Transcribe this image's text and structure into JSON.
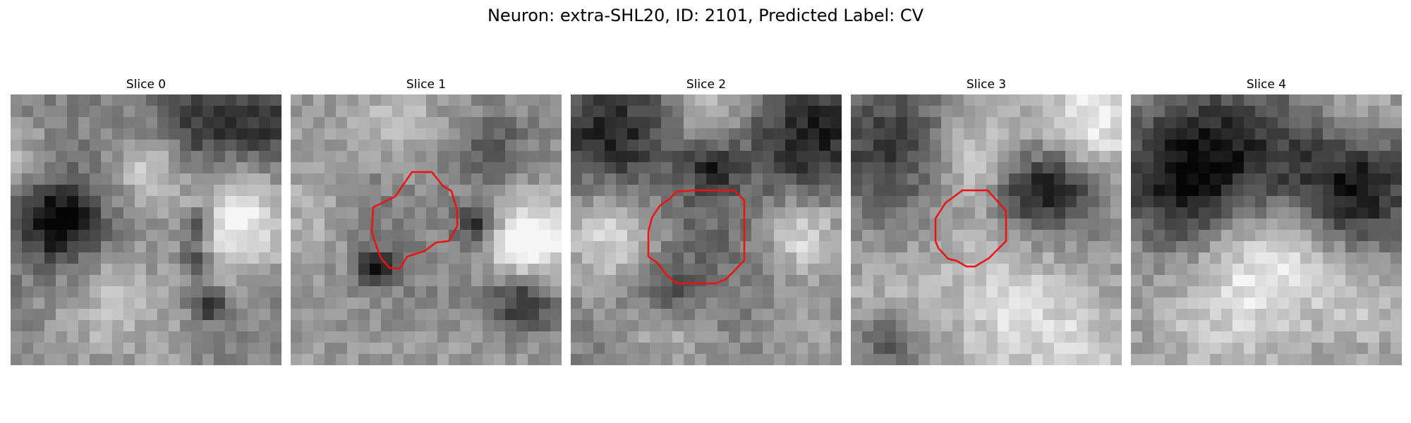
{
  "figure": {
    "title": "Neuron: extra-SHL20, ID: 2101, Predicted Label: CV",
    "outline_color": "#ee1111"
  },
  "panels": [
    {
      "title": "Slice 0",
      "has_outline": false
    },
    {
      "title": "Slice 1",
      "has_outline": true
    },
    {
      "title": "Slice 2",
      "has_outline": true
    },
    {
      "title": "Slice 3",
      "has_outline": true
    },
    {
      "title": "Slice 4",
      "has_outline": false
    }
  ]
}
